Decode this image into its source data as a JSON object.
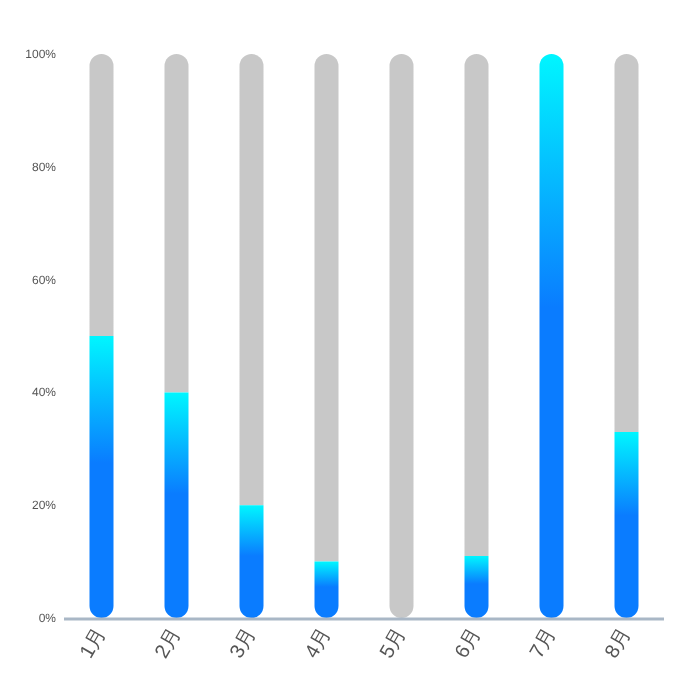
{
  "chart_data": {
    "type": "bar",
    "stacked": true,
    "categories": [
      "1月",
      "2月",
      "3月",
      "4月",
      "5月",
      "6月",
      "7月",
      "8月"
    ],
    "series": [
      {
        "color": "#0a7cff",
        "values": [
          50,
          40,
          20,
          10,
          0,
          11,
          100,
          33
        ]
      },
      {
        "color": "#c8c8c8",
        "values": [
          50,
          60,
          80,
          90,
          100,
          89,
          0,
          67
        ]
      }
    ],
    "ylim": [
      0,
      100
    ],
    "yticks": [
      {
        "value": 0,
        "label": "0%"
      },
      {
        "value": 20,
        "label": "20%"
      },
      {
        "value": 40,
        "label": "40%"
      },
      {
        "value": 60,
        "label": "60%"
      },
      {
        "value": 80,
        "label": "80%"
      },
      {
        "value": 100,
        "label": "100%"
      }
    ],
    "grid": false
  }
}
